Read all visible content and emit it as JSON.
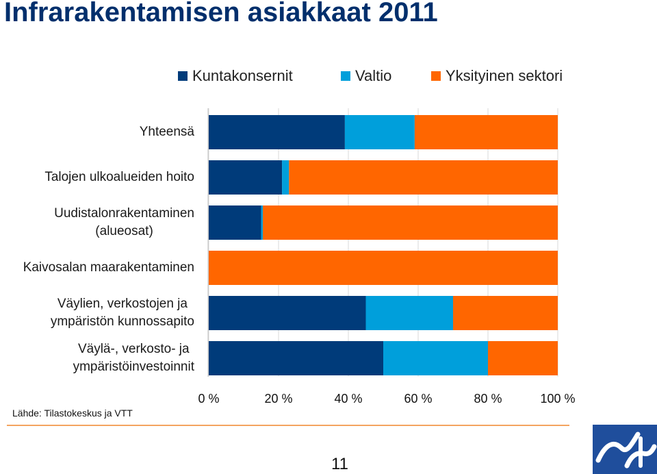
{
  "title": "Infrarakentamisen asiakkaat 2011",
  "source": "Lähde: Tilastokeskus ja VTT",
  "page_number": "11",
  "logo": {
    "icon": "vtt-logo-icon"
  },
  "colors": {
    "Kuntakonsernit": "#003b7a",
    "Valtio": "#009fdb",
    "Yksityinen sektori": "#ff6600",
    "rule": "#f4a460"
  },
  "chart_data": {
    "type": "bar",
    "orientation": "horizontal",
    "stacked": "percent",
    "title": "Infrarakentamisen asiakkaat 2011",
    "categories": [
      "Yhteensä",
      "Talojen ulkoalueiden hoito",
      "Uudistalonrakentaminen (alueosat)",
      "Kaivosalan maarakentaminen",
      "Väylien, verkostojen ja ympäristön kunnossapito",
      "Väylä-, verkosto- ja ympäristöinvestoinnit"
    ],
    "category_lines": [
      [
        "Yhteensä"
      ],
      [
        "Talojen ulkoalueiden hoito"
      ],
      [
        "Uudistalonrakentaminen",
        "(alueosat)"
      ],
      [
        "Kaivosalan maarakentaminen"
      ],
      [
        "Väylien, verkostojen ja",
        "ympäristön kunnossapito"
      ],
      [
        "Väylä-, verkosto- ja",
        "ympäristöinvestoinnit"
      ]
    ],
    "series": [
      {
        "name": "Kuntakonsernit",
        "color": "#003b7a",
        "values": [
          39,
          21,
          15,
          0,
          45,
          50
        ]
      },
      {
        "name": "Valtio",
        "color": "#009fdb",
        "values": [
          20,
          2,
          0.5,
          0,
          25,
          30
        ]
      },
      {
        "name": "Yksityinen sektori",
        "color": "#ff6600",
        "values": [
          41,
          77,
          84.5,
          100,
          30,
          20
        ]
      }
    ],
    "xlim": [
      0,
      100
    ],
    "xticks": [
      "0 %",
      "20 %",
      "40 %",
      "60 %",
      "80 %",
      "100 %"
    ],
    "legend": "top",
    "grid": true
  }
}
